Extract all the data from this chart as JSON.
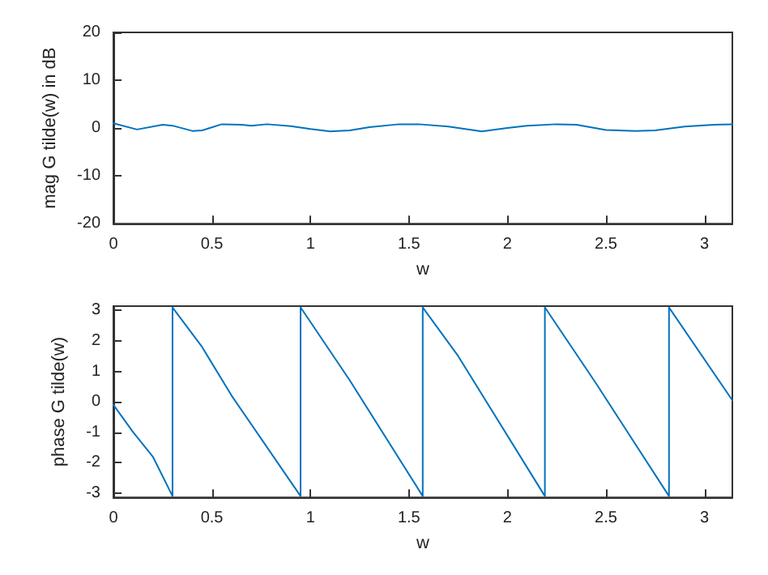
{
  "chart_data": [
    {
      "type": "line",
      "xlabel": "w",
      "ylabel": "mag G tilde(w) in dB",
      "xlim": [
        0,
        3.1416
      ],
      "xticks": [
        0,
        0.5,
        1,
        1.5,
        2,
        2.5,
        3
      ],
      "ylim": [
        -20,
        20
      ],
      "yticks": [
        -20,
        -10,
        0,
        10,
        20
      ],
      "marker": "none",
      "series": [
        {
          "color": "#0072bd",
          "x": [
            0,
            0.12,
            0.25,
            0.3,
            0.4,
            0.45,
            0.55,
            0.65,
            0.7,
            0.78,
            0.9,
            1.0,
            1.1,
            1.2,
            1.3,
            1.45,
            1.55,
            1.7,
            1.87,
            2.0,
            2.1,
            2.25,
            2.35,
            2.5,
            2.65,
            2.75,
            2.9,
            3.05,
            3.1416
          ],
          "values": [
            1,
            -0.3,
            0.7,
            0.5,
            -0.6,
            -0.5,
            0.8,
            0.7,
            0.5,
            0.8,
            0.4,
            -0.2,
            -0.7,
            -0.5,
            0.2,
            0.8,
            0.8,
            0.3,
            -0.7,
            0,
            0.5,
            0.8,
            0.7,
            -0.4,
            -0.6,
            -0.5,
            0.3,
            0.7,
            0.8
          ]
        }
      ]
    },
    {
      "type": "line",
      "xlabel": "w",
      "ylabel": "phase G tilde(w)",
      "xlim": [
        0,
        3.1416
      ],
      "xticks": [
        0,
        0.5,
        1,
        1.5,
        2,
        2.5,
        3
      ],
      "ylim": [
        -3.1416,
        3.1416
      ],
      "yticks": [
        -3,
        -2,
        -1,
        0,
        1,
        2,
        3
      ],
      "marker": "none",
      "series": [
        {
          "color": "#0072bd",
          "x": [
            0,
            0.1,
            0.2,
            0.3,
            0.3,
            0.45,
            0.6,
            0.95,
            0.95,
            1.2,
            1.57,
            1.57,
            1.75,
            2.19,
            2.19,
            2.45,
            2.82,
            2.82,
            3.1416
          ],
          "values": [
            -0.1,
            -1.0,
            -1.8,
            -3.1,
            3.1,
            1.8,
            0.2,
            -3.1,
            3.1,
            0.7,
            -3.1,
            3.1,
            1.5,
            -3.1,
            3.1,
            0.6,
            -3.1,
            3.1,
            0.05
          ]
        }
      ]
    }
  ]
}
